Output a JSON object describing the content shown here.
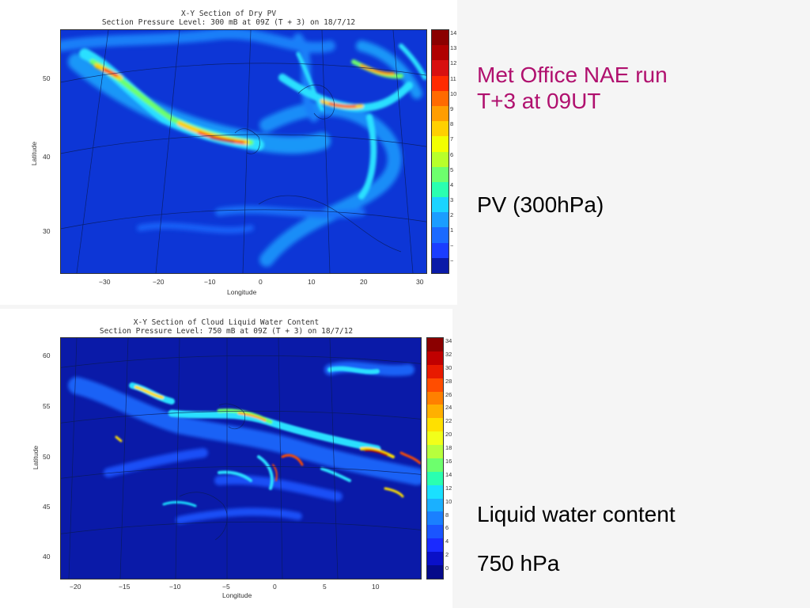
{
  "pv_plot": {
    "title_line1": "X-Y Section of Dry PV",
    "title_line2": "Section Pressure Level:  300 mB at 09Z (T + 3) on 18/7/12",
    "xlabel": "Longitude",
    "ylabel": "Latitude",
    "x_ticks": [
      "−30",
      "−20",
      "−10",
      "0",
      "10",
      "20",
      "30"
    ],
    "y_ticks": [
      "50",
      "40",
      "30"
    ],
    "colorbar_labels": [
      "14",
      "13",
      "12",
      "11",
      "10",
      "9",
      "8",
      "7",
      "6",
      "5",
      "4",
      "3",
      "2",
      "1",
      "−",
      "−"
    ],
    "colorbar_colors": [
      "#8b0000",
      "#b00000",
      "#d81010",
      "#ff2a00",
      "#ff6a00",
      "#ff9d00",
      "#ffd000",
      "#f2ff00",
      "#b8ff2a",
      "#6dff6d",
      "#2affb0",
      "#1ad4ff",
      "#1a9dff",
      "#1a6aff",
      "#1a3dff",
      "#0a1aa8"
    ]
  },
  "lwc_plot": {
    "title_line1": "X-Y Section of Cloud Liquid Water Content",
    "title_line2": "Section Pressure Level:  750 mB at 09Z (T + 3) on 18/7/12",
    "xlabel": "Longitude",
    "ylabel": "Latitude",
    "x_ticks": [
      "−20",
      "−15",
      "−10",
      "−5",
      "0",
      "5",
      "10"
    ],
    "y_ticks": [
      "60",
      "55",
      "50",
      "45",
      "40"
    ],
    "colorbar_labels": [
      "34",
      "32",
      "30",
      "28",
      "26",
      "24",
      "22",
      "20",
      "18",
      "16",
      "14",
      "12",
      "10",
      "8",
      "6",
      "4",
      "2",
      "0"
    ],
    "colorbar_colors": [
      "#8b0000",
      "#c00000",
      "#e81a00",
      "#ff4d00",
      "#ff8000",
      "#ffb000",
      "#ffe000",
      "#f2ff1a",
      "#b8ff3d",
      "#6dff6d",
      "#2affb0",
      "#1ae0ff",
      "#1ab0ff",
      "#1a80ff",
      "#1a55ff",
      "#1a2aff",
      "#0a10c8",
      "#050a8a"
    ]
  },
  "slide": {
    "heading_line1": "Met Office NAE run",
    "heading_line2": "T+3 at 09UT",
    "pv_caption": "PV (300hPa)",
    "lwc_caption_line1": "Liquid water content",
    "lwc_caption_line2": "750 hPa",
    "heading_color": "#b0106e",
    "text_color": "#000000"
  }
}
